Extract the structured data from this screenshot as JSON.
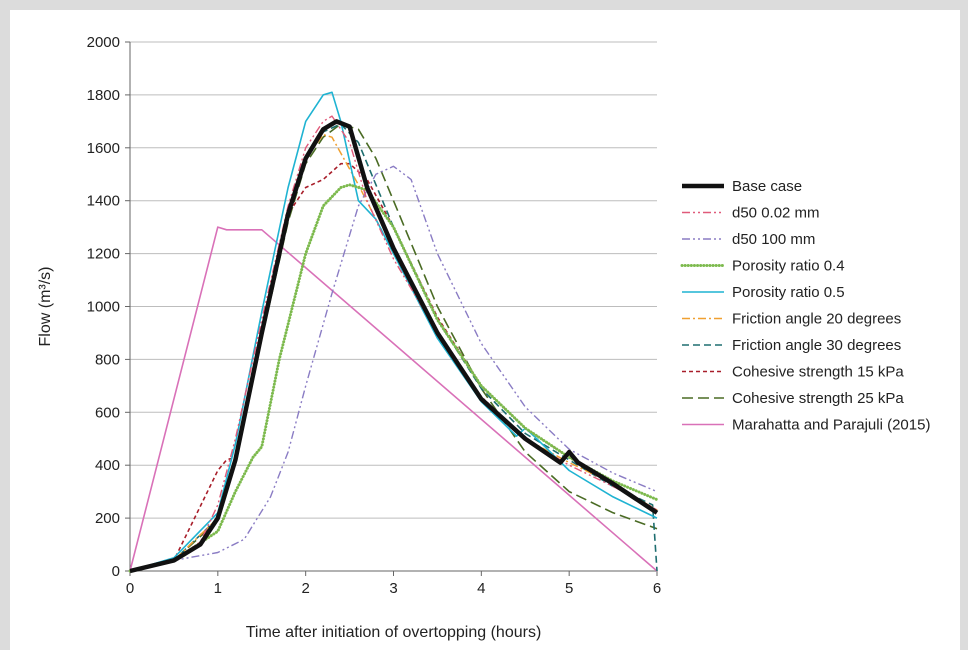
{
  "chart_data": {
    "type": "line",
    "xlabel": "Time after initiation of overtopping (hours)",
    "ylabel": "Flow (m³/s)",
    "xlim": [
      0,
      6
    ],
    "ylim": [
      0,
      2000
    ],
    "xticks": [
      0,
      1,
      2,
      3,
      4,
      5,
      6
    ],
    "yticks": [
      0,
      200,
      400,
      600,
      800,
      1000,
      1200,
      1400,
      1600,
      1800,
      2000
    ],
    "grid": "horizontal",
    "legend_position": "right",
    "series": [
      {
        "name": "Base case",
        "color": "#111111",
        "style": "solid",
        "x": [
          0,
          0.5,
          0.8,
          1.0,
          1.2,
          1.5,
          1.8,
          2.0,
          2.2,
          2.35,
          2.5,
          2.7,
          3.0,
          3.5,
          4.0,
          4.5,
          4.9,
          5.0,
          5.1,
          5.5,
          6.0
        ],
        "y": [
          0,
          40,
          100,
          200,
          420,
          900,
          1350,
          1560,
          1670,
          1700,
          1680,
          1450,
          1220,
          900,
          650,
          500,
          410,
          450,
          410,
          330,
          220
        ]
      },
      {
        "name": "d50 0.02 mm",
        "color": "#e05a7a",
        "style": "dashdotdot",
        "x": [
          0,
          0.5,
          0.8,
          1.0,
          1.2,
          1.5,
          1.8,
          2.0,
          2.2,
          2.3,
          2.5,
          2.7,
          3.0,
          3.5,
          4.0,
          4.5,
          5.0,
          5.5,
          6.0
        ],
        "y": [
          0,
          40,
          110,
          250,
          500,
          950,
          1380,
          1600,
          1700,
          1720,
          1620,
          1400,
          1180,
          900,
          660,
          500,
          400,
          320,
          230
        ]
      },
      {
        "name": "d50 100 mm",
        "color": "#8a7cc4",
        "style": "dashdotdot",
        "x": [
          0,
          0.5,
          1.0,
          1.3,
          1.6,
          1.8,
          2.0,
          2.3,
          2.6,
          2.8,
          3.0,
          3.2,
          3.5,
          4.0,
          4.5,
          5.0,
          5.5,
          6.0
        ],
        "y": [
          0,
          40,
          70,
          120,
          280,
          450,
          700,
          1050,
          1380,
          1500,
          1530,
          1480,
          1200,
          860,
          620,
          460,
          370,
          300
        ]
      },
      {
        "name": "Porosity ratio 0.4",
        "color": "#7dba4e",
        "style": "dotted",
        "x": [
          0,
          0.5,
          1.0,
          1.2,
          1.4,
          1.5,
          1.7,
          2.0,
          2.2,
          2.4,
          2.5,
          2.7,
          3.0,
          3.5,
          4.0,
          4.5,
          5.0,
          5.5,
          6.0
        ],
        "y": [
          0,
          40,
          150,
          300,
          430,
          470,
          800,
          1200,
          1380,
          1450,
          1460,
          1440,
          1300,
          950,
          700,
          540,
          430,
          340,
          270
        ]
      },
      {
        "name": "Porosity ratio 0.5",
        "color": "#1fb3d2",
        "style": "solid",
        "x": [
          0,
          0.5,
          1.0,
          1.2,
          1.5,
          1.8,
          2.0,
          2.2,
          2.3,
          2.4,
          2.6,
          2.8,
          3.0,
          3.5,
          4.0,
          4.4,
          4.5,
          4.6,
          5.0,
          5.5,
          6.0
        ],
        "y": [
          0,
          50,
          220,
          480,
          980,
          1450,
          1700,
          1800,
          1810,
          1700,
          1400,
          1330,
          1200,
          880,
          640,
          510,
          540,
          510,
          380,
          280,
          200
        ]
      },
      {
        "name": "Friction angle 20 degrees",
        "color": "#f0a030",
        "style": "dashdot",
        "x": [
          0,
          0.5,
          1.0,
          1.2,
          1.5,
          1.8,
          2.0,
          2.2,
          2.3,
          2.4,
          2.6,
          3.0,
          3.5,
          4.0,
          4.5,
          5.0,
          5.5,
          6.0
        ],
        "y": [
          0,
          40,
          200,
          430,
          900,
          1350,
          1560,
          1650,
          1640,
          1580,
          1460,
          1200,
          890,
          650,
          500,
          410,
          330,
          230
        ]
      },
      {
        "name": "Friction angle  30 degrees",
        "color": "#1e6e70",
        "style": "dashed",
        "x": [
          0,
          0.5,
          1.0,
          1.2,
          1.5,
          1.8,
          2.0,
          2.2,
          2.4,
          2.6,
          3.0,
          3.5,
          4.0,
          4.5,
          5.0,
          5.5,
          5.95,
          6.0
        ],
        "y": [
          0,
          40,
          200,
          430,
          900,
          1350,
          1560,
          1660,
          1690,
          1620,
          1300,
          950,
          690,
          520,
          420,
          320,
          250,
          0
        ]
      },
      {
        "name": "Cohesive strength 15 kPa",
        "color": "#a81e2a",
        "style": "shortdash",
        "x": [
          0,
          0.5,
          1.0,
          1.1,
          1.2,
          1.5,
          1.8,
          2.0,
          2.2,
          2.4,
          2.5,
          2.7,
          3.0,
          3.5,
          4.0,
          4.5,
          5.0,
          5.5,
          6.0
        ],
        "y": [
          0,
          40,
          380,
          420,
          430,
          900,
          1350,
          1450,
          1480,
          1540,
          1540,
          1480,
          1300,
          960,
          700,
          540,
          430,
          330,
          230
        ]
      },
      {
        "name": "Cohesive strength 25 kPa",
        "color": "#4a6b24",
        "style": "longdash",
        "x": [
          0,
          0.5,
          1.0,
          1.2,
          1.5,
          1.8,
          2.0,
          2.2,
          2.4,
          2.6,
          2.8,
          3.0,
          3.5,
          4.0,
          4.5,
          5.0,
          5.5,
          6.0
        ],
        "y": [
          0,
          40,
          190,
          420,
          880,
          1320,
          1540,
          1640,
          1690,
          1670,
          1560,
          1400,
          1000,
          690,
          450,
          300,
          220,
          160
        ]
      },
      {
        "name": "Marahatta and Parajuli (2015)",
        "color": "#d971b8",
        "style": "solid",
        "x": [
          0,
          1.0,
          1.1,
          1.5,
          6.0
        ],
        "y": [
          0,
          1300,
          1290,
          1290,
          0
        ]
      }
    ]
  }
}
